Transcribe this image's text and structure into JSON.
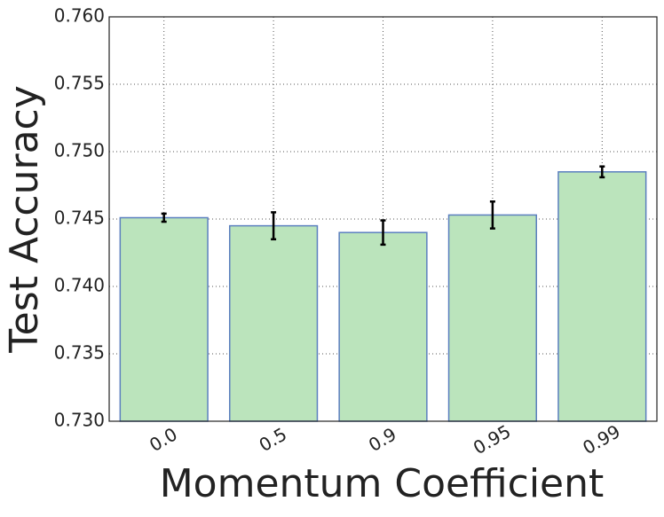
{
  "chart_data": {
    "type": "bar",
    "x_label": "Momentum Coefficient",
    "y_label": "Test Accuracy",
    "categories": [
      "0.0",
      "0.5",
      "0.9",
      "0.95",
      "0.99"
    ],
    "values": [
      0.7451,
      0.7445,
      0.744,
      0.7453,
      0.7485
    ],
    "errors": [
      0.0003,
      0.001,
      0.0009,
      0.001,
      0.0004
    ],
    "color": "#bbe4bc",
    "edge_color": "#5b7fbf",
    "ylim": [
      0.73,
      0.76
    ],
    "yticks": [
      {
        "value": 0.73,
        "label": "0.730"
      },
      {
        "value": 0.735,
        "label": "0.735"
      },
      {
        "value": 0.74,
        "label": "0.740"
      },
      {
        "value": 0.745,
        "label": "0.745"
      },
      {
        "value": 0.75,
        "label": "0.750"
      },
      {
        "value": 0.755,
        "label": "0.755"
      },
      {
        "value": 0.76,
        "label": "0.760"
      }
    ],
    "grid": true
  }
}
